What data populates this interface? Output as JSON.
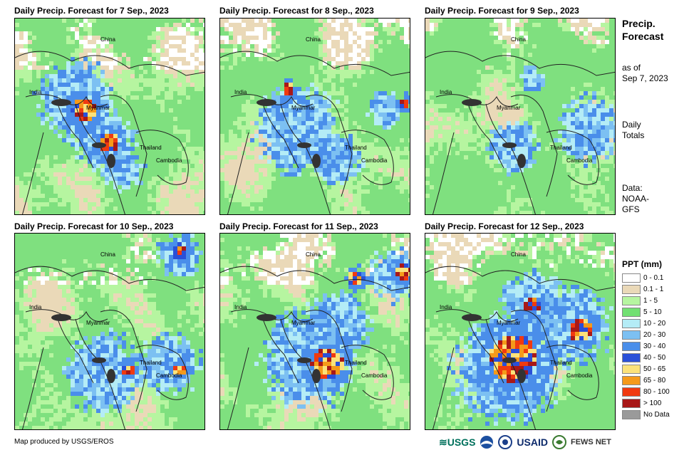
{
  "panels": [
    {
      "title": "Daily Precip. Forecast for 7 Sep., 2023",
      "seed": 7,
      "hot": [
        [
          0.35,
          0.45,
          0.06
        ],
        [
          0.48,
          0.62,
          0.05
        ]
      ],
      "blue": [
        [
          0.3,
          0.4,
          0.18
        ],
        [
          0.45,
          0.6,
          0.14
        ],
        [
          0.55,
          0.75,
          0.1
        ]
      ]
    },
    {
      "title": "Daily Precip. Forecast for 8 Sep., 2023",
      "seed": 8,
      "hot": [
        [
          0.35,
          0.35,
          0.03
        ],
        [
          0.95,
          0.42,
          0.03
        ]
      ],
      "blue": [
        [
          0.4,
          0.55,
          0.2
        ],
        [
          0.6,
          0.7,
          0.12
        ],
        [
          0.85,
          0.45,
          0.08
        ]
      ]
    },
    {
      "title": "Daily Precip. Forecast for 9 Sep., 2023",
      "seed": 9,
      "hot": [],
      "blue": [
        [
          0.85,
          0.55,
          0.15
        ],
        [
          0.45,
          0.65,
          0.12
        ],
        [
          0.55,
          0.3,
          0.06
        ]
      ]
    },
    {
      "title": "Daily Precip. Forecast for 10 Sep., 2023",
      "seed": 10,
      "hot": [
        [
          0.85,
          0.08,
          0.04
        ],
        [
          0.58,
          0.68,
          0.03
        ],
        [
          0.85,
          0.68,
          0.03
        ]
      ],
      "blue": [
        [
          0.45,
          0.7,
          0.18
        ],
        [
          0.8,
          0.65,
          0.14
        ],
        [
          0.85,
          0.1,
          0.1
        ]
      ]
    },
    {
      "title": "Daily Precip. Forecast for 11 Sep., 2023",
      "seed": 11,
      "hot": [
        [
          0.55,
          0.65,
          0.08
        ],
        [
          0.7,
          0.22,
          0.04
        ],
        [
          0.95,
          0.18,
          0.04
        ]
      ],
      "blue": [
        [
          0.45,
          0.62,
          0.22
        ],
        [
          0.6,
          0.45,
          0.15
        ],
        [
          0.9,
          0.2,
          0.12
        ]
      ]
    },
    {
      "title": "Daily Precip. Forecast for 12 Sep., 2023",
      "seed": 12,
      "hot": [
        [
          0.45,
          0.62,
          0.12
        ],
        [
          0.8,
          0.48,
          0.06
        ],
        [
          0.55,
          0.35,
          0.04
        ]
      ],
      "blue": [
        [
          0.42,
          0.68,
          0.25
        ],
        [
          0.75,
          0.45,
          0.18
        ],
        [
          0.55,
          0.35,
          0.15
        ]
      ]
    }
  ],
  "map_labels": {
    "china": "China",
    "india": "India",
    "myanmar": "Myanmar",
    "thailand": "Thailand",
    "cambodia": "Cambodia"
  },
  "sidebar": {
    "title_line1": "Precip.",
    "title_line2": "Forecast",
    "asof_line1": "as of",
    "asof_line2": "Sep 7, 2023",
    "daily_line1": "Daily",
    "daily_line2": "Totals",
    "data_line1": "Data:",
    "data_line2": "NOAA-",
    "data_line3": "GFS"
  },
  "legend": {
    "title": "PPT (mm)",
    "items": [
      {
        "label": "0 - 0.1",
        "color": "#ffffff"
      },
      {
        "label": "0.1 - 1",
        "color": "#ead9b8"
      },
      {
        "label": "1 - 5",
        "color": "#b6f5a0"
      },
      {
        "label": "5 - 10",
        "color": "#72e072"
      },
      {
        "label": "10 - 20",
        "color": "#b4ecf6"
      },
      {
        "label": "20 - 30",
        "color": "#7cc0f2"
      },
      {
        "label": "30 - 40",
        "color": "#4a8eea"
      },
      {
        "label": "40 - 50",
        "color": "#2a50d8"
      },
      {
        "label": "50 - 65",
        "color": "#fbe27a"
      },
      {
        "label": "65 - 80",
        "color": "#f59a1a"
      },
      {
        "label": "80 - 100",
        "color": "#f03a10"
      },
      {
        "label": "> 100",
        "color": "#a81818"
      },
      {
        "label": "No Data",
        "color": "#9a9a9a"
      }
    ]
  },
  "credit": "Map produced by USGS/EROS",
  "logos": {
    "usgs": "USGS",
    "usaid": "USAID",
    "fews": "FEWS NET"
  }
}
